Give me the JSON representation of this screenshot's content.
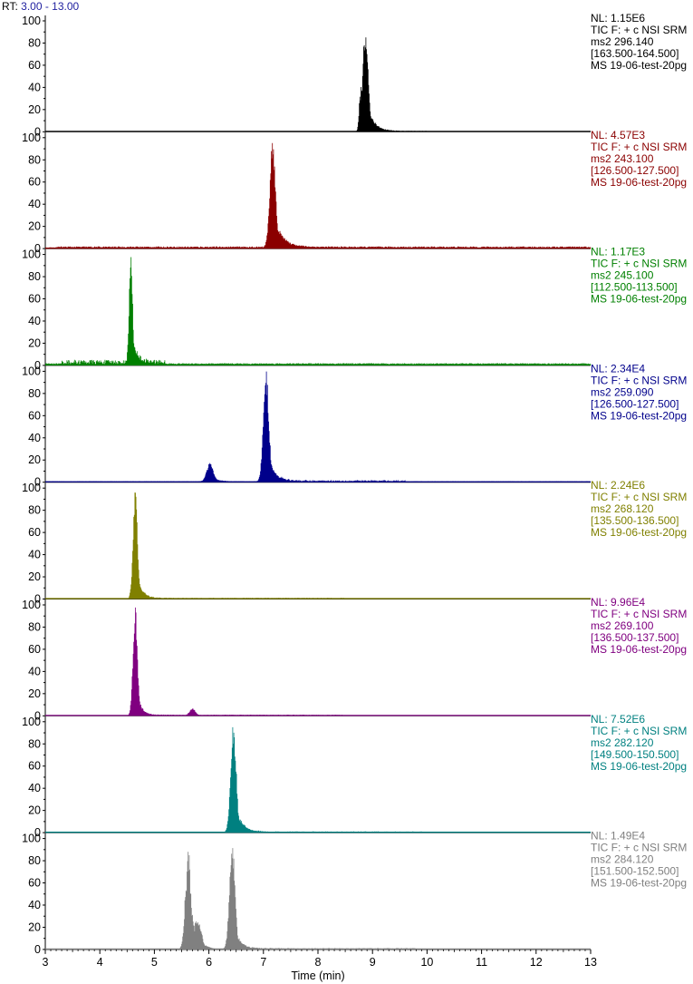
{
  "header": {
    "rt_prefix": "RT:",
    "rt_range": "3.00 - 13.00"
  },
  "chart_data": {
    "type": "line",
    "xlabel": "Time (min)",
    "xlim": [
      3,
      13
    ],
    "x_ticks": [
      "3",
      "4",
      "5",
      "6",
      "7",
      "8",
      "9",
      "10",
      "11",
      "12",
      "13"
    ],
    "ylim": [
      0,
      100
    ],
    "y_ticks": [
      "0",
      "20",
      "40",
      "60",
      "80",
      "100"
    ],
    "traces": [
      {
        "color": "#000000",
        "info": [
          "NL: 1.15E6",
          "TIC F: + c NSI SRM",
          "ms2 296.140",
          "[163.500-164.500]",
          "MS 19-06-test-20pg"
        ],
        "peaks": [
          {
            "rt": 8.87,
            "height": 100,
            "width": 0.05,
            "tail": 0.12
          },
          {
            "rt": 8.77,
            "height": 25,
            "width": 0.02,
            "tail": 0.02
          }
        ],
        "baseline": 0.3,
        "noise": 0.6,
        "noise_range": [
          8.9,
          10.0
        ]
      },
      {
        "color": "#8b0000",
        "info": [
          "NL: 4.57E3",
          "TIC F: + c NSI SRM",
          "ms2 243.100",
          "[126.500-127.500]",
          "MS 19-06-test-20pg"
        ],
        "peaks": [
          {
            "rt": 7.17,
            "height": 100,
            "width": 0.05,
            "tail": 0.15
          }
        ],
        "baseline": 0.8,
        "noise": 1.2,
        "noise_range": [
          3.2,
          13.0
        ]
      },
      {
        "color": "#008000",
        "info": [
          "NL: 1.17E3",
          "TIC F: + c NSI SRM",
          "ms2 245.100",
          "[112.500-113.500]",
          "MS 19-06-test-20pg"
        ],
        "peaks": [
          {
            "rt": 4.57,
            "height": 100,
            "width": 0.03,
            "tail": 0.08
          }
        ],
        "baseline": 1,
        "noise": 4,
        "noise_range": [
          3.3,
          5.2
        ]
      },
      {
        "color": "#00008b",
        "info": [
          "NL: 2.34E4",
          "TIC F: + c NSI SRM",
          "ms2 259.090",
          "[126.500-127.500]",
          "MS 19-06-test-20pg"
        ],
        "peaks": [
          {
            "rt": 7.05,
            "height": 100,
            "width": 0.05,
            "tail": 0.12
          },
          {
            "rt": 6.02,
            "height": 17,
            "width": 0.06,
            "tail": 0.12
          }
        ],
        "baseline": 0.4,
        "noise": 1.5,
        "noise_range": [
          7.3,
          9.6
        ]
      },
      {
        "color": "#808000",
        "info": [
          "NL: 2.24E6",
          "TIC F: + c NSI SRM",
          "ms2 268.120",
          "[135.500-136.500]",
          "MS 19-06-test-20pg"
        ],
        "peaks": [
          {
            "rt": 4.65,
            "height": 100,
            "width": 0.04,
            "tail": 0.09
          }
        ],
        "baseline": 0.3,
        "noise": 0.8,
        "noise_range": [
          4.8,
          8.5
        ]
      },
      {
        "color": "#800080",
        "info": [
          "NL: 9.96E4",
          "TIC F: + c NSI SRM",
          "ms2 269.100",
          "[136.500-137.500]",
          "MS 19-06-test-20pg"
        ],
        "peaks": [
          {
            "rt": 4.65,
            "height": 100,
            "width": 0.04,
            "tail": 0.08
          },
          {
            "rt": 5.7,
            "height": 6,
            "width": 0.05,
            "tail": 0.05
          }
        ],
        "baseline": 0.3,
        "noise": 0.8,
        "noise_range": [
          4.8,
          8.5
        ]
      },
      {
        "color": "#008080",
        "info": [
          "NL: 7.52E6",
          "TIC F: + c NSI SRM",
          "ms2 282.120",
          "[149.500-150.500]",
          "MS 19-06-test-20pg"
        ],
        "peaks": [
          {
            "rt": 6.45,
            "height": 100,
            "width": 0.05,
            "tail": 0.12
          }
        ],
        "baseline": 0.3,
        "noise": 0.8,
        "noise_range": [
          6.6,
          9.9
        ]
      },
      {
        "color": "#808080",
        "info": [
          "NL: 1.49E4",
          "TIC F: + c NSI SRM",
          "ms2 284.120",
          "[151.500-152.500]",
          "MS 19-06-test-20pg"
        ],
        "peaks": [
          {
            "rt": 5.62,
            "height": 100,
            "width": 0.05,
            "tail": 0.1
          },
          {
            "rt": 6.43,
            "height": 98,
            "width": 0.05,
            "tail": 0.1
          },
          {
            "rt": 5.8,
            "height": 25,
            "width": 0.06,
            "tail": 0.1
          }
        ],
        "baseline": 0.3,
        "noise": 1.0,
        "noise_range": [
          6.6,
          9.8
        ]
      }
    ]
  }
}
